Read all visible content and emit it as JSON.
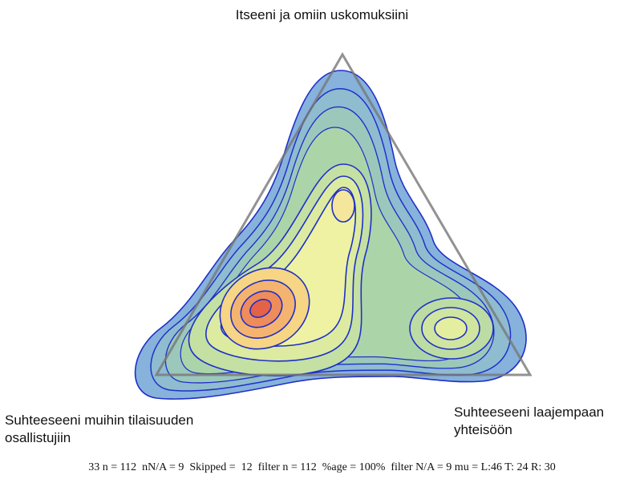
{
  "labels": {
    "top": "Itseeni ja omiin uskomuksiini",
    "left": [
      "Suhteeseeni muihin tilaisuuden",
      "osallistujiin"
    ],
    "right": [
      "Suhteeseeni laajempaan",
      "yhteisöön"
    ]
  },
  "footer": "33 n = 112  nN/A = 9  Skipped =  12  filter n = 112  %age = 100%  filter N/A = 9 mu = L:46 T: 24 R: 30"
}
